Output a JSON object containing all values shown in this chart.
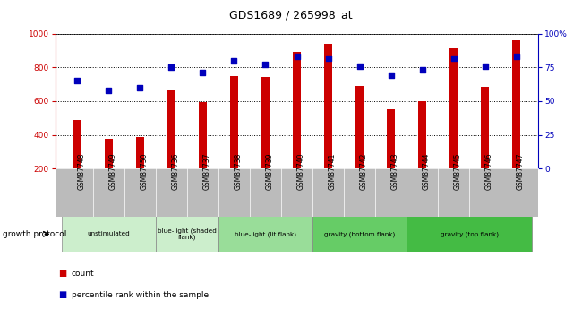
{
  "title": "GDS1689 / 265998_at",
  "samples": [
    "GSM87748",
    "GSM87749",
    "GSM87750",
    "GSM87736",
    "GSM87737",
    "GSM87738",
    "GSM87739",
    "GSM87740",
    "GSM87741",
    "GSM87742",
    "GSM87743",
    "GSM87744",
    "GSM87745",
    "GSM87746",
    "GSM87747"
  ],
  "counts": [
    490,
    375,
    385,
    670,
    595,
    750,
    745,
    895,
    940,
    690,
    550,
    600,
    915,
    685,
    960
  ],
  "percentile_ranks_pct": [
    65,
    58,
    60,
    75,
    71,
    80,
    77,
    83,
    82,
    76,
    69,
    73,
    82,
    76,
    83
  ],
  "ylim_left": [
    200,
    1000
  ],
  "ylim_right": [
    0,
    100
  ],
  "yticks_left": [
    200,
    400,
    600,
    800,
    1000
  ],
  "yticks_right": [
    0,
    25,
    50,
    75,
    100
  ],
  "bar_color": "#cc0000",
  "dot_color": "#0000bb",
  "bar_width": 0.25,
  "groups": [
    {
      "label": "unstimulated",
      "start": 0,
      "end": 3
    },
    {
      "label": "blue-light (shaded\nflank)",
      "start": 3,
      "end": 5
    },
    {
      "label": "blue-light (lit flank)",
      "start": 5,
      "end": 8
    },
    {
      "label": "gravity (bottom flank)",
      "start": 8,
      "end": 11
    },
    {
      "label": "gravity (top flank)",
      "start": 11,
      "end": 15
    }
  ],
  "group_colors": [
    "#cceecc",
    "#cceecc",
    "#99dd99",
    "#66cc66",
    "#44bb44"
  ],
  "tick_bg_color": "#bbbbbb",
  "left_axis_color": "#cc0000",
  "right_axis_color": "#0000bb",
  "grid_linestyle": "dotted",
  "grid_color": "#000000"
}
